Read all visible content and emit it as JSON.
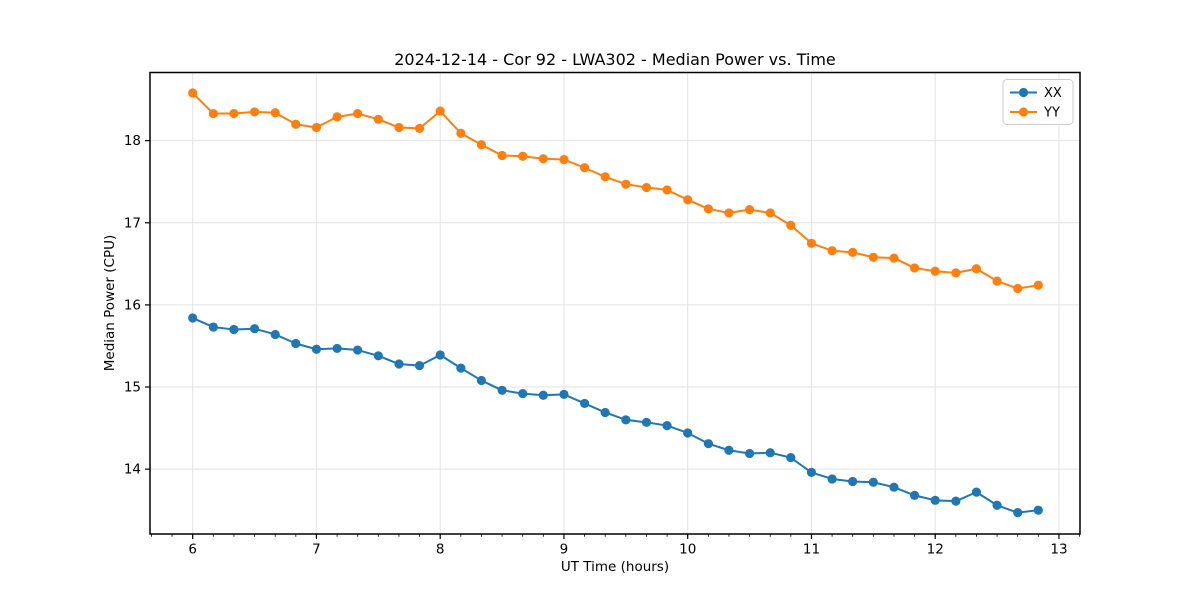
{
  "chart_data": {
    "type": "line",
    "title": "2024-12-14 - Cor 92 - LWA302 - Median Power vs. Time",
    "xlabel": "UT Time (hours)",
    "ylabel": "Median Power (CPU)",
    "xlim": [
      5.655,
      13.17
    ],
    "ylim": [
      13.21,
      18.83
    ],
    "xticks": [
      6,
      7,
      8,
      9,
      10,
      11,
      12,
      13
    ],
    "yticks": [
      14,
      15,
      16,
      17,
      18
    ],
    "x_minor_tick_step": 0.1666667,
    "grid": true,
    "grid_color": "#e3e3e3",
    "legend_position": "upper right",
    "x": [
      6.0,
      6.167,
      6.333,
      6.5,
      6.667,
      6.833,
      7.0,
      7.167,
      7.333,
      7.5,
      7.667,
      7.833,
      8.0,
      8.167,
      8.333,
      8.5,
      8.667,
      8.833,
      9.0,
      9.167,
      9.333,
      9.5,
      9.667,
      9.833,
      10.0,
      10.167,
      10.333,
      10.5,
      10.667,
      10.833,
      11.0,
      11.167,
      11.333,
      11.5,
      11.667,
      11.833,
      12.0,
      12.167,
      12.333,
      12.5,
      12.667,
      12.833
    ],
    "series": [
      {
        "name": "XX",
        "color": "#1f77b4",
        "values": [
          15.84,
          15.73,
          15.7,
          15.71,
          15.64,
          15.53,
          15.46,
          15.47,
          15.45,
          15.38,
          15.28,
          15.26,
          15.39,
          15.23,
          15.08,
          14.96,
          14.92,
          14.9,
          14.91,
          14.8,
          14.69,
          14.6,
          14.57,
          14.53,
          14.44,
          14.31,
          14.23,
          14.19,
          14.2,
          14.14,
          13.96,
          13.88,
          13.85,
          13.84,
          13.78,
          13.68,
          13.62,
          13.61,
          13.72,
          13.56,
          13.47,
          13.5
        ]
      },
      {
        "name": "YY",
        "color": "#ff7f0e",
        "values": [
          18.58,
          18.33,
          18.33,
          18.35,
          18.34,
          18.2,
          18.16,
          18.29,
          18.33,
          18.26,
          18.16,
          18.15,
          18.36,
          18.09,
          17.95,
          17.82,
          17.81,
          17.78,
          17.77,
          17.67,
          17.56,
          17.47,
          17.43,
          17.4,
          17.28,
          17.17,
          17.12,
          17.16,
          17.12,
          16.97,
          16.75,
          16.66,
          16.64,
          16.58,
          16.57,
          16.45,
          16.41,
          16.39,
          16.44,
          16.29,
          16.2,
          16.24
        ]
      }
    ]
  },
  "style": {
    "spine_color": "#000000",
    "tick_color": "#000000",
    "legend_border_color": "#cccccc",
    "legend_bg_color": "#ffffff",
    "background_color": "#ffffff"
  }
}
